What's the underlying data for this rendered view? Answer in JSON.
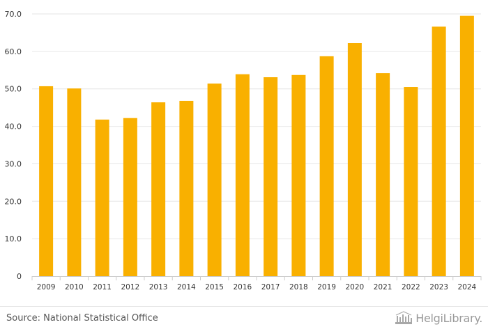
{
  "chart_data": {
    "type": "bar",
    "categories": [
      "2009",
      "2010",
      "2011",
      "2012",
      "2013",
      "2014",
      "2015",
      "2016",
      "2017",
      "2018",
      "2019",
      "2020",
      "2021",
      "2022",
      "2023",
      "2024"
    ],
    "values": [
      50.7,
      50.1,
      41.8,
      42.2,
      46.4,
      46.8,
      51.4,
      53.9,
      53.1,
      53.7,
      58.7,
      62.2,
      54.2,
      50.5,
      66.6,
      69.5
    ],
    "title": "",
    "xlabel": "",
    "ylabel": "",
    "ylim": [
      0,
      70
    ],
    "yticks": [
      0,
      10,
      20,
      30,
      40,
      50,
      60,
      70
    ],
    "ytick_labels": [
      "0",
      "10.0",
      "20.0",
      "30.0",
      "40.0",
      "50.0",
      "60.0",
      "70.0"
    ],
    "grid": true,
    "bar_color": "#f9b000"
  },
  "footer": {
    "source": "Source: National Statistical Office",
    "logo_text": "HelgiLibrary."
  },
  "colors": {
    "grid": "#e6e6e6",
    "axis_text": "#333333",
    "logo": "#9a9a9a"
  }
}
